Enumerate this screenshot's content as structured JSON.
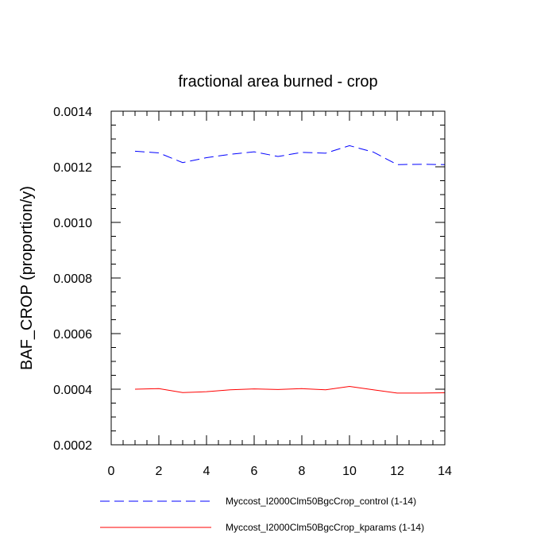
{
  "chart_data": {
    "type": "line",
    "title": "fractional area burned - crop",
    "xlabel": "",
    "ylabel": "BAF_CROP  (proportion/y)",
    "xlim": [
      0,
      14
    ],
    "ylim": [
      0.0002,
      0.0014
    ],
    "xticks": [
      "0",
      "2",
      "4",
      "6",
      "8",
      "10",
      "12",
      "14"
    ],
    "yticks": [
      "0.0002",
      "0.0004",
      "0.0006",
      "0.0008",
      "0.0010",
      "0.0012",
      "0.0014"
    ],
    "grid": false,
    "legend_position": "bottom",
    "x": [
      1,
      2,
      3,
      4,
      5,
      6,
      7,
      8,
      9,
      10,
      11,
      12,
      13,
      14
    ],
    "series": [
      {
        "name": "Myccost_I2000Clm50BgcCrop_control (1-14)",
        "color": "#0000ff",
        "style": "dashed",
        "values": [
          0.001256,
          0.00125,
          0.001215,
          0.001233,
          0.001245,
          0.001254,
          0.001237,
          0.001252,
          0.001249,
          0.001276,
          0.001253,
          0.001208,
          0.001209,
          0.001208
        ]
      },
      {
        "name": "Myccost_I2000Clm50BgcCrop_kparams (1-14)",
        "color": "#ff0000",
        "style": "solid",
        "values": [
          0.0004,
          0.000402,
          0.000388,
          0.000391,
          0.000398,
          0.000401,
          0.000399,
          0.000402,
          0.000398,
          0.00041,
          0.000398,
          0.000386,
          0.000386,
          0.000387
        ]
      }
    ]
  }
}
